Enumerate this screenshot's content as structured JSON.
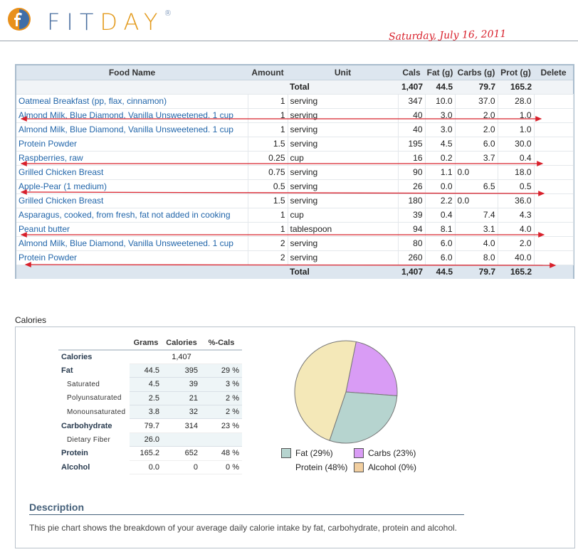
{
  "header": {
    "logo_fit": "FIT",
    "logo_day": "DAY",
    "logo_reg": "®",
    "date": "Saturday, July 16, 2011"
  },
  "food_table": {
    "columns": [
      "Food Name",
      "Amount",
      "Unit",
      "Cals",
      "Fat (g)",
      "Carbs (g)",
      "Prot (g)",
      "Delete"
    ],
    "total_label": "Total",
    "totals": {
      "cals": "1,407",
      "fat": "44.5",
      "carbs": "79.7",
      "prot": "165.2"
    },
    "rows": [
      {
        "name": "Oatmeal Breakfast (pp, flax, cinnamon)",
        "amount": "1",
        "unit": "serving",
        "cals": "347",
        "fat": "10.0",
        "carbs": "37.0",
        "prot": "28.0"
      },
      {
        "name": "Almond Milk, Blue Diamond, Vanilla Unsweetened. 1 cup",
        "amount": "1",
        "unit": "serving",
        "cals": "40",
        "fat": "3.0",
        "carbs": "2.0",
        "prot": "1.0"
      },
      {
        "name": "Almond Milk, Blue Diamond, Vanilla Unsweetened. 1 cup",
        "amount": "1",
        "unit": "serving",
        "cals": "40",
        "fat": "3.0",
        "carbs": "2.0",
        "prot": "1.0"
      },
      {
        "name": "Protein Powder",
        "amount": "1.5",
        "unit": "serving",
        "cals": "195",
        "fat": "4.5",
        "carbs": "6.0",
        "prot": "30.0"
      },
      {
        "name": "Raspberries, raw",
        "amount": "0.25",
        "unit": "cup",
        "cals": "16",
        "fat": "0.2",
        "carbs": "3.7",
        "prot": "0.4"
      },
      {
        "name": "Grilled Chicken Breast",
        "amount": "0.75",
        "unit": "serving",
        "cals": "90",
        "fat": "1.1",
        "carbs": "0.0",
        "prot": "18.0"
      },
      {
        "name": "Apple-Pear (1 medium)",
        "amount": "0.5",
        "unit": "serving",
        "cals": "26",
        "fat": "0.0",
        "carbs": "6.5",
        "prot": "0.5"
      },
      {
        "name": "Grilled Chicken Breast",
        "amount": "1.5",
        "unit": "serving",
        "cals": "180",
        "fat": "2.2",
        "carbs": "0.0",
        "prot": "36.0"
      },
      {
        "name": "Asparagus, cooked, from fresh, fat not added in cooking",
        "amount": "1",
        "unit": "cup",
        "cals": "39",
        "fat": "0.4",
        "carbs": "7.4",
        "prot": "4.3"
      },
      {
        "name": "Peanut butter",
        "amount": "1",
        "unit": "tablespoon",
        "cals": "94",
        "fat": "8.1",
        "carbs": "3.1",
        "prot": "4.0"
      },
      {
        "name": "Almond Milk, Blue Diamond, Vanilla Unsweetened. 1 cup",
        "amount": "2",
        "unit": "serving",
        "cals": "80",
        "fat": "6.0",
        "carbs": "4.0",
        "prot": "2.0"
      },
      {
        "name": "Protein Powder",
        "amount": "2",
        "unit": "serving",
        "cals": "260",
        "fat": "6.0",
        "carbs": "8.0",
        "prot": "40.0"
      }
    ]
  },
  "calories_section": {
    "label": "Calories",
    "columns": [
      "Grams",
      "Calories",
      "%-Cals"
    ],
    "rows": [
      {
        "label": "Calories",
        "grams": "",
        "calories": "1,407",
        "pct": "",
        "kind": "main"
      },
      {
        "label": "Fat",
        "grams": "44.5",
        "calories": "395",
        "pct": "29 %",
        "kind": "main"
      },
      {
        "label": "Saturated",
        "grams": "4.5",
        "calories": "39",
        "pct": "3 %",
        "kind": "sub"
      },
      {
        "label": "Polyunsaturated",
        "grams": "2.5",
        "calories": "21",
        "pct": "2 %",
        "kind": "sub"
      },
      {
        "label": "Monounsaturated",
        "grams": "3.8",
        "calories": "32",
        "pct": "2 %",
        "kind": "sub"
      },
      {
        "label": "Carbohydrate",
        "grams": "79.7",
        "calories": "314",
        "pct": "23 %",
        "kind": "main"
      },
      {
        "label": "Dietary Fiber",
        "grams": "26.0",
        "calories": "",
        "pct": "",
        "kind": "sub"
      },
      {
        "label": "Protein",
        "grams": "165.2",
        "calories": "652",
        "pct": "48 %",
        "kind": "main"
      },
      {
        "label": "Alcohol",
        "grams": "0.0",
        "calories": "0",
        "pct": "0 %",
        "kind": "main"
      }
    ],
    "description_title": "Description",
    "description_text": "This pie chart shows the breakdown of your average daily calorie intake by fat, carbohydrate, protein and alcohol."
  },
  "chart_data": {
    "type": "pie",
    "slices": [
      {
        "label": "Fat",
        "legend": "Fat  (29%)",
        "value": 29,
        "color": "#b6d4cf"
      },
      {
        "label": "Carbs",
        "legend": "Carbs  (23%)",
        "value": 23,
        "color": "#d99cf5"
      },
      {
        "label": "Protein",
        "legend": "Protein  (48%)",
        "value": 48,
        "color": "#f4e8b8"
      },
      {
        "label": "Alcohol",
        "legend": "Alcohol  (0%)",
        "value": 0,
        "color": "#f2cfa0"
      }
    ]
  },
  "annotations": {
    "arrow_color": "#d8202b",
    "arrow_count": 6
  }
}
